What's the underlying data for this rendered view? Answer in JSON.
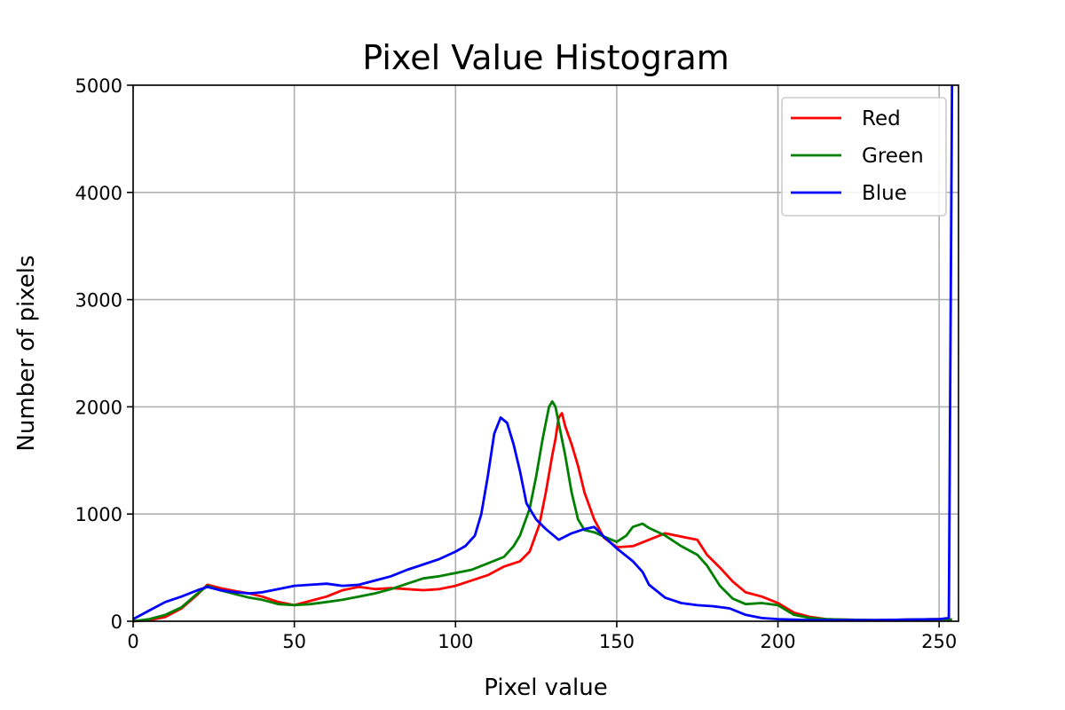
{
  "chart_data": {
    "type": "line",
    "title": "Pixel Value Histogram",
    "xlabel": "Pixel value",
    "ylabel": "Number of pixels",
    "xlim": [
      0,
      256
    ],
    "ylim": [
      0,
      5000
    ],
    "xticks": [
      0,
      50,
      100,
      150,
      200,
      250
    ],
    "yticks": [
      0,
      1000,
      2000,
      3000,
      4000,
      5000
    ],
    "grid": true,
    "legend_position": "upper right",
    "series": [
      {
        "name": "Red",
        "color": "#ff0000",
        "points": [
          [
            0,
            0
          ],
          [
            5,
            10
          ],
          [
            10,
            40
          ],
          [
            15,
            120
          ],
          [
            20,
            250
          ],
          [
            23,
            340
          ],
          [
            27,
            310
          ],
          [
            32,
            280
          ],
          [
            36,
            260
          ],
          [
            40,
            230
          ],
          [
            45,
            180
          ],
          [
            50,
            150
          ],
          [
            55,
            190
          ],
          [
            60,
            230
          ],
          [
            65,
            290
          ],
          [
            70,
            320
          ],
          [
            75,
            300
          ],
          [
            80,
            310
          ],
          [
            85,
            300
          ],
          [
            90,
            290
          ],
          [
            95,
            300
          ],
          [
            100,
            330
          ],
          [
            105,
            380
          ],
          [
            110,
            430
          ],
          [
            115,
            510
          ],
          [
            120,
            560
          ],
          [
            123,
            650
          ],
          [
            126,
            900
          ],
          [
            128,
            1200
          ],
          [
            130,
            1550
          ],
          [
            131,
            1700
          ],
          [
            132,
            1900
          ],
          [
            133,
            1940
          ],
          [
            134,
            1820
          ],
          [
            136,
            1650
          ],
          [
            138,
            1450
          ],
          [
            140,
            1200
          ],
          [
            143,
            950
          ],
          [
            146,
            780
          ],
          [
            150,
            690
          ],
          [
            155,
            700
          ],
          [
            160,
            760
          ],
          [
            165,
            820
          ],
          [
            170,
            790
          ],
          [
            175,
            760
          ],
          [
            178,
            620
          ],
          [
            182,
            500
          ],
          [
            186,
            370
          ],
          [
            190,
            270
          ],
          [
            195,
            230
          ],
          [
            200,
            170
          ],
          [
            205,
            80
          ],
          [
            210,
            40
          ],
          [
            215,
            20
          ],
          [
            220,
            15
          ],
          [
            230,
            10
          ],
          [
            240,
            15
          ],
          [
            250,
            20
          ],
          [
            254,
            15
          ]
        ]
      },
      {
        "name": "Green",
        "color": "#008000",
        "points": [
          [
            0,
            0
          ],
          [
            5,
            20
          ],
          [
            10,
            60
          ],
          [
            15,
            130
          ],
          [
            20,
            260
          ],
          [
            23,
            330
          ],
          [
            27,
            290
          ],
          [
            32,
            250
          ],
          [
            36,
            220
          ],
          [
            40,
            200
          ],
          [
            45,
            160
          ],
          [
            50,
            150
          ],
          [
            55,
            160
          ],
          [
            60,
            180
          ],
          [
            65,
            200
          ],
          [
            70,
            230
          ],
          [
            75,
            260
          ],
          [
            80,
            300
          ],
          [
            85,
            350
          ],
          [
            90,
            400
          ],
          [
            95,
            420
          ],
          [
            100,
            450
          ],
          [
            105,
            480
          ],
          [
            110,
            540
          ],
          [
            115,
            600
          ],
          [
            118,
            700
          ],
          [
            120,
            800
          ],
          [
            123,
            1050
          ],
          [
            125,
            1350
          ],
          [
            127,
            1700
          ],
          [
            129,
            2000
          ],
          [
            130,
            2050
          ],
          [
            131,
            2000
          ],
          [
            132,
            1850
          ],
          [
            134,
            1550
          ],
          [
            136,
            1200
          ],
          [
            138,
            950
          ],
          [
            140,
            850
          ],
          [
            143,
            830
          ],
          [
            146,
            790
          ],
          [
            150,
            740
          ],
          [
            153,
            800
          ],
          [
            155,
            880
          ],
          [
            158,
            910
          ],
          [
            160,
            870
          ],
          [
            165,
            800
          ],
          [
            170,
            700
          ],
          [
            175,
            620
          ],
          [
            178,
            520
          ],
          [
            182,
            330
          ],
          [
            186,
            210
          ],
          [
            190,
            160
          ],
          [
            195,
            170
          ],
          [
            200,
            150
          ],
          [
            205,
            60
          ],
          [
            210,
            30
          ],
          [
            215,
            20
          ],
          [
            220,
            15
          ],
          [
            230,
            10
          ],
          [
            240,
            15
          ],
          [
            250,
            20
          ],
          [
            254,
            15
          ]
        ]
      },
      {
        "name": "Blue",
        "color": "#0000ff",
        "points": [
          [
            0,
            20
          ],
          [
            5,
            100
          ],
          [
            10,
            180
          ],
          [
            15,
            230
          ],
          [
            20,
            290
          ],
          [
            23,
            320
          ],
          [
            27,
            290
          ],
          [
            32,
            270
          ],
          [
            36,
            260
          ],
          [
            40,
            270
          ],
          [
            45,
            300
          ],
          [
            50,
            330
          ],
          [
            55,
            340
          ],
          [
            60,
            350
          ],
          [
            65,
            330
          ],
          [
            70,
            340
          ],
          [
            75,
            380
          ],
          [
            80,
            420
          ],
          [
            85,
            480
          ],
          [
            90,
            530
          ],
          [
            95,
            580
          ],
          [
            100,
            650
          ],
          [
            103,
            700
          ],
          [
            106,
            800
          ],
          [
            108,
            1000
          ],
          [
            110,
            1350
          ],
          [
            112,
            1750
          ],
          [
            114,
            1900
          ],
          [
            116,
            1850
          ],
          [
            118,
            1650
          ],
          [
            120,
            1400
          ],
          [
            122,
            1100
          ],
          [
            125,
            950
          ],
          [
            128,
            860
          ],
          [
            132,
            760
          ],
          [
            136,
            820
          ],
          [
            140,
            860
          ],
          [
            143,
            880
          ],
          [
            146,
            790
          ],
          [
            150,
            680
          ],
          [
            155,
            560
          ],
          [
            158,
            460
          ],
          [
            160,
            340
          ],
          [
            165,
            220
          ],
          [
            170,
            170
          ],
          [
            175,
            150
          ],
          [
            180,
            140
          ],
          [
            185,
            120
          ],
          [
            190,
            60
          ],
          [
            195,
            30
          ],
          [
            200,
            20
          ],
          [
            205,
            15
          ],
          [
            210,
            10
          ],
          [
            220,
            10
          ],
          [
            230,
            10
          ],
          [
            240,
            15
          ],
          [
            250,
            20
          ],
          [
            253,
            30
          ],
          [
            254,
            5000
          ]
        ]
      }
    ]
  }
}
